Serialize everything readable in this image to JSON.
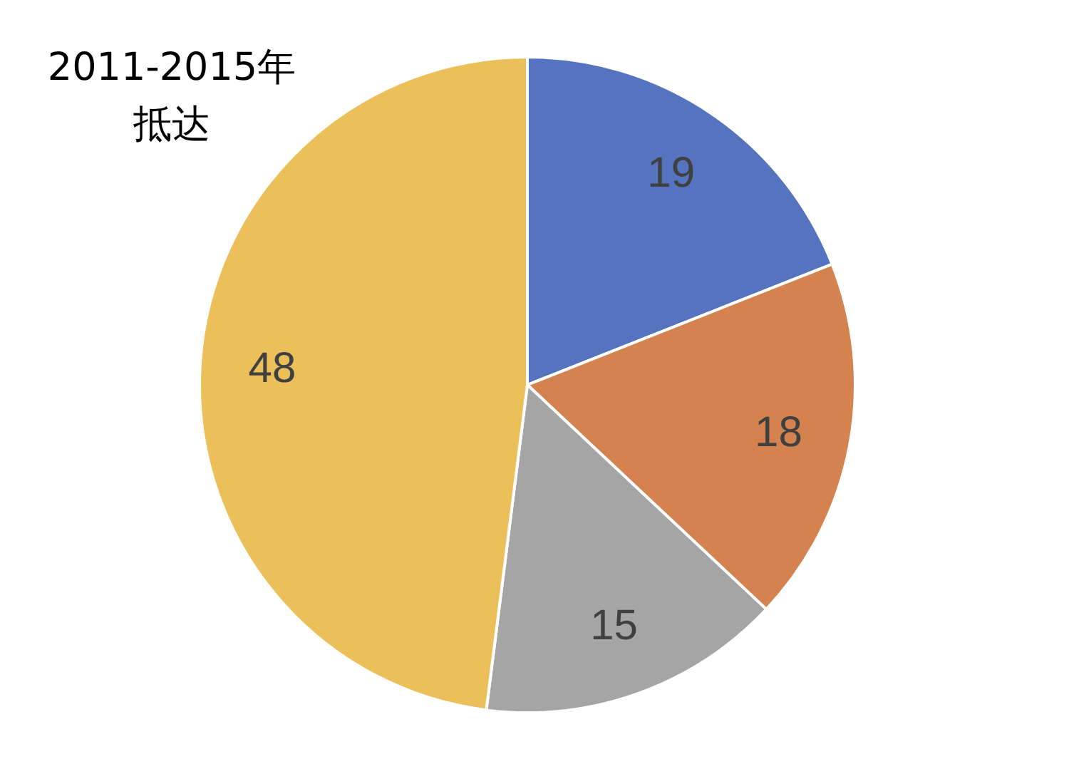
{
  "chart_data": {
    "type": "pie",
    "title": "2011-2015年抵达",
    "categories": [
      null,
      null,
      null,
      null
    ],
    "values": [
      19,
      18,
      15,
      48
    ],
    "colors": [
      "#5573be",
      "#d4824f",
      "#a5a5a5",
      "#ebbf5a"
    ],
    "data_labels": true
  }
}
